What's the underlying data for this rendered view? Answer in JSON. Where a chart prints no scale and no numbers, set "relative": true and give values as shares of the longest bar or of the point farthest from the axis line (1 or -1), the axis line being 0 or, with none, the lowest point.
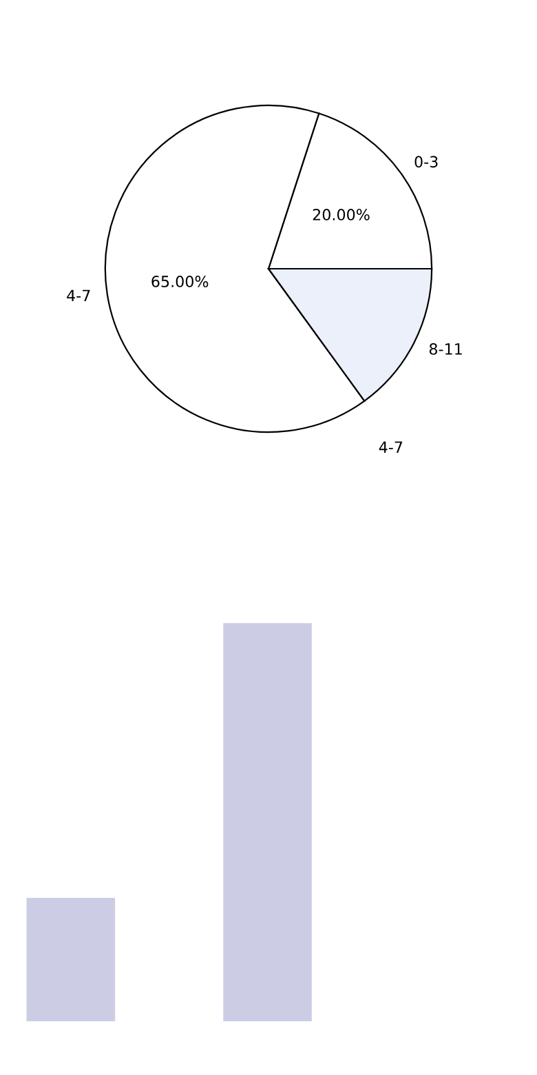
{
  "chart_data": [
    {
      "type": "pie",
      "categories": [
        "0-3",
        "4-7",
        "8-11"
      ],
      "values": [
        20,
        65,
        15
      ],
      "colors": [
        "#ffffff",
        "#ffffff",
        "#ebf0fb"
      ],
      "value_labels": [
        "20.00%",
        "65.00%",
        null
      ],
      "annotations": [
        "4-7"
      ]
    },
    {
      "type": "bar",
      "relative": true,
      "categories": [
        null,
        null
      ],
      "values": [
        0.31,
        1
      ],
      "color": "#cccce4"
    }
  ]
}
